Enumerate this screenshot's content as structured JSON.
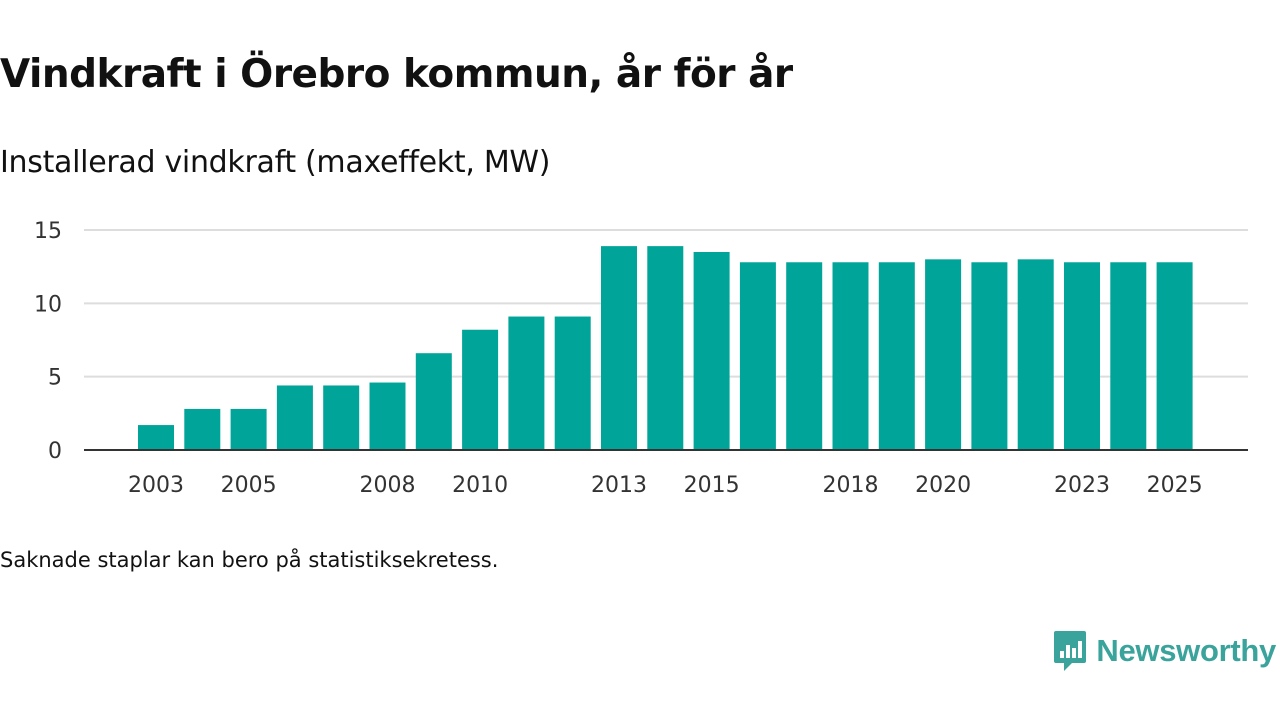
{
  "title": "Vindkraft i Örebro kommun, år för år",
  "subtitle": "Installerad vindkraft (maxeffekt, MW)",
  "footnote": "Saknade staplar kan bero på statistiksekretess.",
  "brand": {
    "name": "Newsworthy",
    "icon": "newsworthy-logo-icon",
    "color": "#3aa39b"
  },
  "colors": {
    "bar": "#00a499",
    "grid": "#dddddd",
    "axis": "#333333"
  },
  "chart_data": {
    "type": "bar",
    "title": "Vindkraft i Örebro kommun, år för år",
    "subtitle": "Installerad vindkraft (maxeffekt, MW)",
    "xlabel": "",
    "ylabel": "Installerad vindkraft (maxeffekt, MW)",
    "categories": [
      "2003",
      "2004",
      "2005",
      "2006",
      "2007",
      "2008",
      "2009",
      "2010",
      "2011",
      "2012",
      "2013",
      "2014",
      "2015",
      "2016",
      "2017",
      "2018",
      "2019",
      "2020",
      "2021",
      "2022",
      "2023",
      "2024",
      "2025"
    ],
    "values": [
      1.7,
      2.8,
      2.8,
      4.4,
      4.4,
      4.6,
      6.6,
      8.2,
      9.1,
      9.1,
      13.9,
      13.9,
      13.5,
      12.8,
      12.8,
      12.8,
      12.8,
      13.0,
      12.8,
      13.0,
      12.8,
      12.8,
      12.8
    ],
    "x_tick_labels": [
      "2003",
      "2005",
      "2008",
      "2010",
      "2013",
      "2015",
      "2018",
      "2020",
      "2023",
      "2025"
    ],
    "y_ticks": [
      0,
      5,
      10,
      15
    ],
    "ylim": [
      0,
      15
    ],
    "grid": true,
    "legend": "none"
  }
}
